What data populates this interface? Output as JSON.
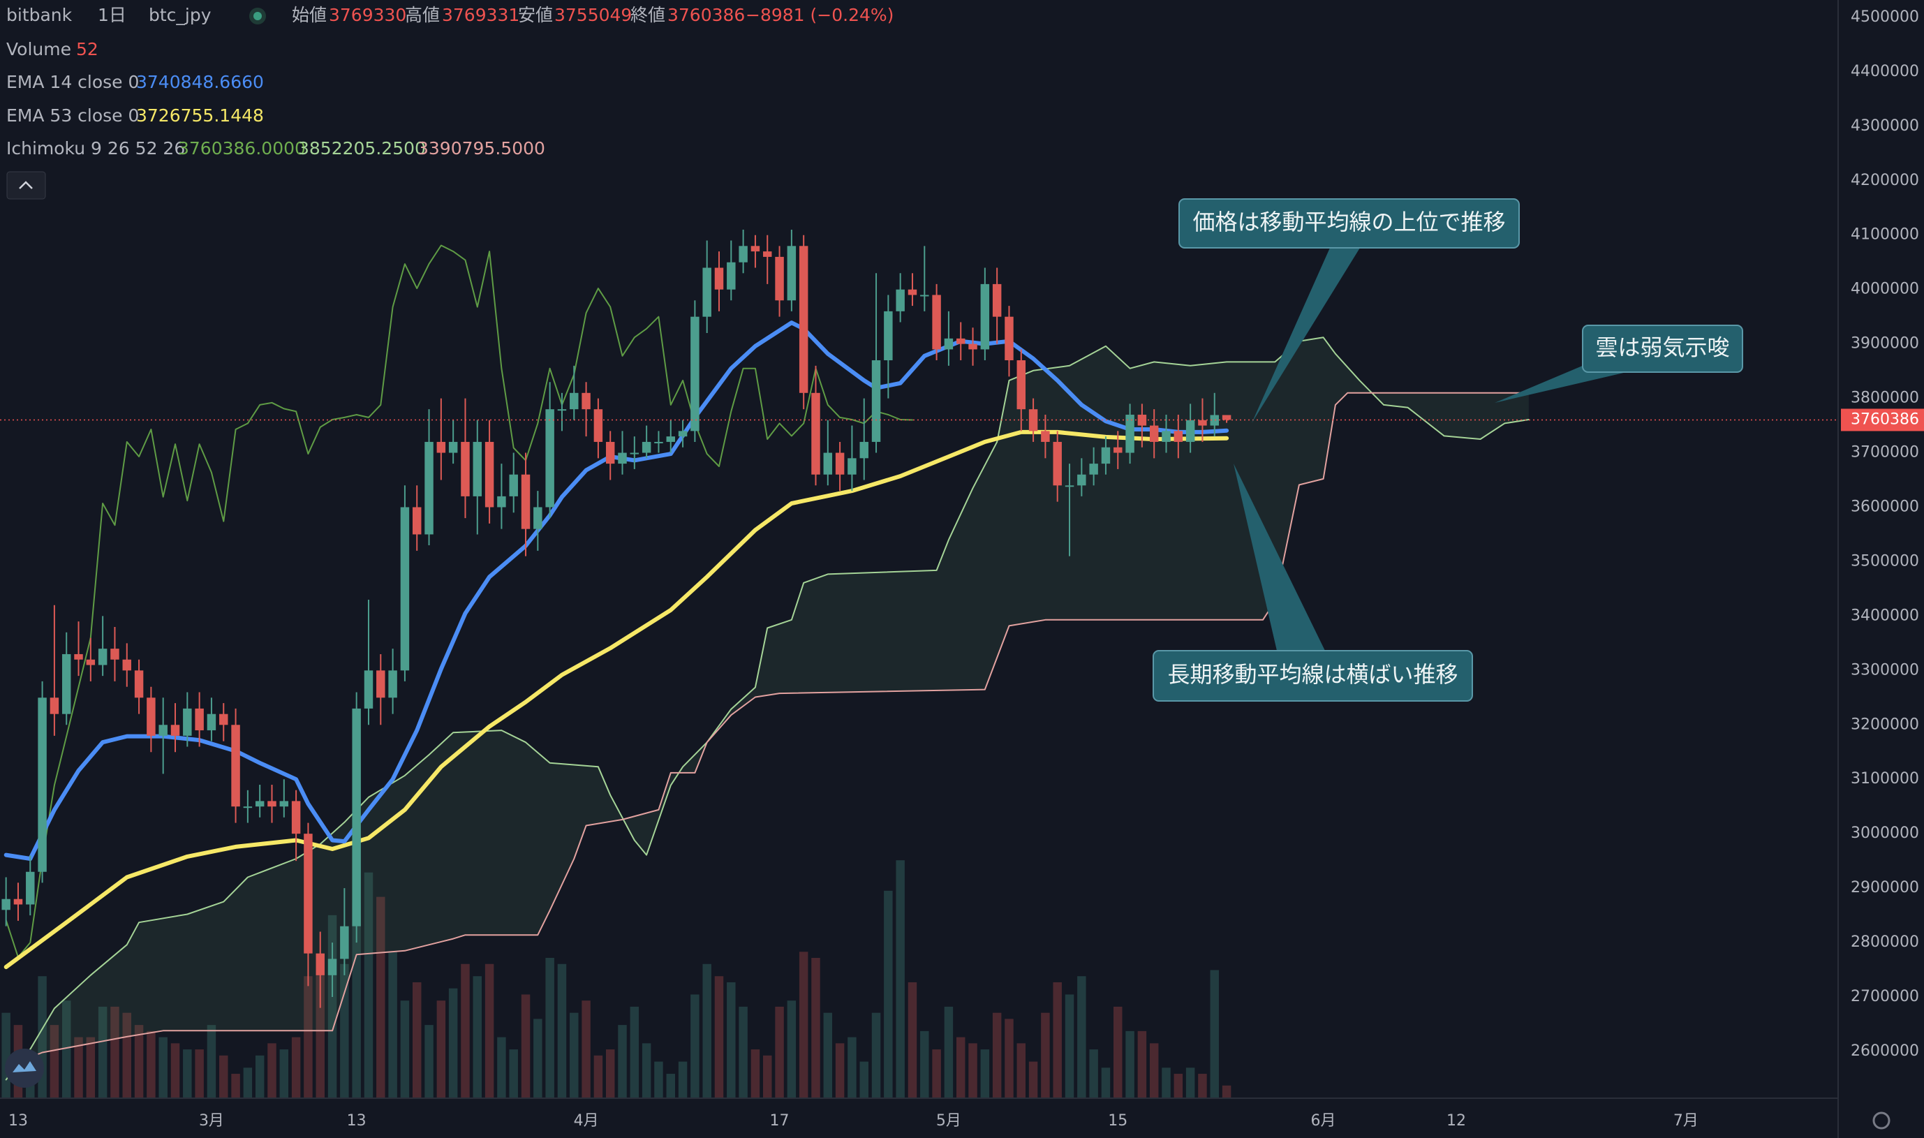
{
  "chart_data": {
    "type": "candlestick",
    "exchange": "bitbank",
    "interval": "1日",
    "symbol": "btc_jpy",
    "ohlc_labels": [
      "始値",
      "高値",
      "安値",
      "終値"
    ],
    "change": "−8981 (−0.24%)",
    "xlim": [
      -0.5,
      151.6
    ],
    "xticks": [
      {
        "value": 1,
        "label": "13"
      },
      {
        "value": 17,
        "label": "3月"
      },
      {
        "value": 29,
        "label": "13"
      },
      {
        "value": 48,
        "label": "4月"
      },
      {
        "value": 64,
        "label": "17"
      },
      {
        "value": 78,
        "label": "5月"
      },
      {
        "value": 92,
        "label": "15"
      },
      {
        "value": 109,
        "label": "6月"
      },
      {
        "value": 120,
        "label": "12"
      },
      {
        "value": 139,
        "label": "7月"
      }
    ],
    "ylim": [
      2514000,
      4532000
    ],
    "yticks": [
      2600000,
      2700000,
      2800000,
      2900000,
      3000000,
      3100000,
      3200000,
      3300000,
      3400000,
      3500000,
      3600000,
      3700000,
      3800000,
      3900000,
      4000000,
      4100000,
      4200000,
      4300000,
      4400000,
      4500000
    ],
    "grid": false,
    "candles": {
      "up_color": "#4c9e8e",
      "down_color": "#dd5a55",
      "x": [
        0,
        1,
        2,
        3,
        4,
        5,
        6,
        7,
        8,
        9,
        10,
        11,
        12,
        13,
        14,
        15,
        16,
        17,
        18,
        19,
        20,
        21,
        22,
        23,
        24,
        25,
        26,
        27,
        28,
        29,
        30,
        31,
        32,
        33,
        34,
        35,
        36,
        37,
        38,
        39,
        40,
        41,
        42,
        43,
        44,
        45,
        46,
        47,
        48,
        49,
        50,
        51,
        52,
        53,
        54,
        55,
        56,
        57,
        58,
        59,
        60,
        61,
        62,
        63,
        64,
        65,
        66,
        67,
        68,
        69,
        70,
        71,
        72,
        73,
        74,
        75,
        76,
        77,
        78,
        79,
        80,
        81,
        82,
        83,
        84,
        85,
        86,
        87,
        88,
        89,
        90,
        91,
        92,
        93,
        94,
        95,
        96,
        97,
        98,
        99,
        100,
        101
      ],
      "open": [
        2860000,
        2880000,
        2870000,
        2930000,
        3250000,
        3220000,
        3330000,
        3320000,
        3310000,
        3340000,
        3320000,
        3300000,
        3250000,
        3180000,
        3200000,
        3180000,
        3230000,
        3190000,
        3220000,
        3200000,
        3050000,
        3050000,
        3060000,
        3050000,
        3060000,
        3000000,
        2780000,
        2740000,
        2770000,
        2830000,
        3230000,
        3300000,
        3250000,
        3300000,
        3600000,
        3550000,
        3720000,
        3700000,
        3720000,
        3620000,
        3720000,
        3600000,
        3620000,
        3660000,
        3560000,
        3600000,
        3780000,
        3780000,
        3810000,
        3780000,
        3720000,
        3680000,
        3700000,
        3700000,
        3720000,
        3720000,
        3730000,
        3740000,
        3950000,
        4040000,
        4000000,
        4050000,
        4080000,
        4070000,
        4060000,
        3980000,
        4080000,
        3810000,
        3660000,
        3700000,
        3660000,
        3690000,
        3720000,
        3870000,
        3960000,
        4000000,
        3990000,
        3990000,
        3890000,
        3910000,
        3900000,
        3890000,
        4010000,
        3950000,
        3870000,
        3780000,
        3740000,
        3720000,
        3640000,
        3640000,
        3660000,
        3680000,
        3710000,
        3700000,
        3770000,
        3750000,
        3720000,
        3740000,
        3720000,
        3760000,
        3750000,
        3769330
      ],
      "high": [
        2920000,
        2910000,
        2960000,
        3280000,
        3420000,
        3370000,
        3390000,
        3360000,
        3400000,
        3380000,
        3350000,
        3320000,
        3270000,
        3250000,
        3240000,
        3260000,
        3260000,
        3250000,
        3240000,
        3230000,
        3080000,
        3090000,
        3090000,
        3100000,
        3080000,
        3020000,
        2820000,
        2800000,
        2900000,
        3260000,
        3430000,
        3330000,
        3340000,
        3640000,
        3640000,
        3780000,
        3800000,
        3760000,
        3800000,
        3760000,
        3760000,
        3680000,
        3700000,
        3700000,
        3630000,
        3830000,
        3810000,
        3860000,
        3830000,
        3800000,
        3740000,
        3740000,
        3730000,
        3750000,
        3740000,
        3760000,
        3760000,
        3980000,
        4090000,
        4070000,
        4090000,
        4110000,
        4100000,
        4100000,
        4080000,
        4110000,
        4100000,
        3860000,
        3760000,
        3720000,
        3750000,
        3800000,
        4030000,
        3990000,
        4030000,
        4030000,
        4080000,
        4010000,
        3960000,
        3940000,
        3930000,
        4040000,
        4040000,
        3970000,
        3890000,
        3800000,
        3770000,
        3740000,
        3680000,
        3690000,
        3710000,
        3730000,
        3740000,
        3790000,
        3790000,
        3780000,
        3770000,
        3770000,
        3790000,
        3800000,
        3810000,
        3769331
      ],
      "low": [
        2830000,
        2840000,
        2850000,
        2910000,
        3180000,
        3200000,
        3290000,
        3280000,
        3290000,
        3280000,
        3270000,
        3220000,
        3150000,
        3110000,
        3150000,
        3160000,
        3160000,
        3170000,
        3170000,
        3020000,
        3020000,
        3030000,
        3020000,
        3030000,
        2950000,
        2720000,
        2680000,
        2700000,
        2740000,
        2800000,
        3200000,
        3200000,
        3220000,
        3280000,
        3520000,
        3530000,
        3650000,
        3680000,
        3580000,
        3550000,
        3570000,
        3560000,
        3590000,
        3510000,
        3520000,
        3580000,
        3740000,
        3760000,
        3730000,
        3690000,
        3650000,
        3660000,
        3670000,
        3690000,
        3700000,
        3700000,
        3710000,
        3720000,
        3920000,
        3960000,
        3980000,
        4030000,
        4040000,
        4010000,
        3950000,
        3960000,
        3780000,
        3640000,
        3640000,
        3630000,
        3630000,
        3650000,
        3700000,
        3800000,
        3940000,
        3970000,
        3960000,
        3870000,
        3860000,
        3870000,
        3860000,
        3870000,
        3900000,
        3840000,
        3740000,
        3720000,
        3690000,
        3610000,
        3510000,
        3620000,
        3640000,
        3660000,
        3670000,
        3680000,
        3710000,
        3690000,
        3700000,
        3690000,
        3700000,
        3720000,
        3730000,
        3755049
      ],
      "close": [
        2880000,
        2870000,
        2930000,
        3250000,
        3220000,
        3330000,
        3320000,
        3310000,
        3340000,
        3320000,
        3300000,
        3250000,
        3180000,
        3200000,
        3180000,
        3230000,
        3190000,
        3220000,
        3200000,
        3050000,
        3050000,
        3060000,
        3050000,
        3060000,
        3000000,
        2780000,
        2740000,
        2770000,
        2830000,
        3230000,
        3300000,
        3250000,
        3300000,
        3600000,
        3550000,
        3720000,
        3700000,
        3720000,
        3620000,
        3720000,
        3600000,
        3620000,
        3660000,
        3560000,
        3600000,
        3780000,
        3780000,
        3810000,
        3780000,
        3720000,
        3680000,
        3700000,
        3700000,
        3720000,
        3720000,
        3730000,
        3740000,
        3950000,
        4040000,
        4000000,
        4050000,
        4080000,
        4070000,
        4060000,
        3980000,
        4080000,
        3810000,
        3660000,
        3700000,
        3660000,
        3690000,
        3720000,
        3870000,
        3960000,
        4000000,
        3990000,
        3990000,
        3890000,
        3910000,
        3900000,
        3890000,
        4010000,
        3950000,
        3870000,
        3780000,
        3740000,
        3720000,
        3640000,
        3640000,
        3660000,
        3680000,
        3710000,
        3700000,
        3770000,
        3750000,
        3720000,
        3740000,
        3720000,
        3760000,
        3750000,
        3769330,
        3760386
      ]
    },
    "volume": {
      "name": "Volume",
      "ylim": [
        0,
        4500
      ],
      "values": [
        350,
        300,
        150,
        500,
        300,
        400,
        250,
        250,
        375,
        375,
        350,
        300,
        275,
        250,
        225,
        200,
        200,
        300,
        175,
        100,
        125,
        175,
        225,
        200,
        250,
        500,
        525,
        750,
        550,
        800,
        925,
        825,
        600,
        400,
        475,
        300,
        400,
        450,
        550,
        500,
        550,
        250,
        200,
        425,
        325,
        575,
        550,
        350,
        400,
        175,
        200,
        300,
        375,
        225,
        150,
        100,
        150,
        425,
        550,
        500,
        475,
        375,
        200,
        175,
        375,
        400,
        600,
        575,
        350,
        225,
        250,
        150,
        350,
        850,
        975,
        475,
        275,
        200,
        375,
        250,
        225,
        200,
        350,
        325,
        225,
        150,
        350,
        475,
        425,
        500,
        200,
        125,
        375,
        275,
        275,
        225,
        125,
        100,
        125,
        100,
        525,
        52
      ]
    },
    "series": [
      {
        "name": "EMA 14 close 0",
        "color": "#4b8df5",
        "legend_value": "3740848.6660",
        "x": [
          0,
          2,
          4,
          6,
          8,
          10,
          13,
          16,
          19,
          21,
          24,
          25,
          27,
          28,
          30,
          32,
          34,
          36,
          38,
          40,
          43,
          45,
          46,
          48,
          50,
          52,
          55,
          57,
          60,
          62,
          65,
          66,
          68,
          71,
          72,
          74,
          76,
          79,
          81,
          83,
          85,
          87,
          89,
          91,
          93,
          95,
          97,
          99,
          101
        ],
        "values": [
          2961000,
          2954000,
          3044000,
          3116000,
          3168000,
          3179000,
          3179000,
          3172000,
          3152000,
          3130000,
          3100000,
          3055000,
          2988000,
          2986000,
          3044000,
          3100000,
          3190000,
          3303000,
          3405000,
          3472000,
          3529000,
          3585000,
          3619000,
          3668000,
          3693000,
          3686000,
          3698000,
          3765000,
          3855000,
          3896000,
          3939000,
          3928000,
          3882000,
          3833000,
          3819000,
          3828000,
          3878000,
          3905000,
          3900000,
          3905000,
          3873000,
          3833000,
          3788000,
          3758000,
          3743000,
          3743000,
          3738000,
          3738000,
          3740849
        ]
      },
      {
        "name": "EMA 53 close 0",
        "color": "#f6e867",
        "legend_value": "3726755.1448",
        "x": [
          0,
          5,
          10,
          15,
          19,
          24,
          27,
          30,
          33,
          36,
          40,
          43,
          46,
          50,
          55,
          58,
          62,
          65,
          70,
          74,
          78,
          81,
          84,
          87,
          91,
          95,
          101
        ],
        "values": [
          2755000,
          2837000,
          2920000,
          2958000,
          2976000,
          2988000,
          2972000,
          2992000,
          3044000,
          3123000,
          3197000,
          3242000,
          3292000,
          3341000,
          3411000,
          3472000,
          3558000,
          3607000,
          3630000,
          3657000,
          3693000,
          3720000,
          3738000,
          3738000,
          3729000,
          3725000,
          3726755
        ]
      }
    ],
    "ichimoku": {
      "name": "Ichimoku 9 26 52 26",
      "legend_values": [
        "3760386.0000",
        "3852205.2500",
        "3390795.5000"
      ],
      "cloud_color": "rgba(90,150,110,0.13)",
      "lagging": {
        "color": "#5f9c45",
        "x": [
          0,
          1,
          2,
          3,
          4,
          5,
          7,
          8,
          9,
          10,
          11,
          12,
          13,
          14,
          15,
          16,
          17,
          18,
          19,
          20,
          21,
          22,
          23,
          24,
          25,
          26,
          27,
          28,
          29,
          30,
          31,
          32,
          33,
          34,
          35,
          36,
          37,
          38,
          39,
          40,
          41,
          42,
          43,
          44,
          45,
          46,
          47,
          48,
          49,
          50,
          51,
          52,
          53,
          54,
          55,
          56,
          57,
          58,
          59,
          60,
          61,
          62,
          63,
          64,
          65,
          66,
          67,
          68,
          69,
          70,
          71,
          72,
          73,
          74,
          75
        ],
        "values": [
          2841000,
          2773000,
          2800000,
          2954000,
          3089000,
          3179000,
          3360000,
          3607000,
          3567000,
          3720000,
          3693000,
          3743000,
          3619000,
          3716000,
          3612000,
          3716000,
          3664000,
          3574000,
          3743000,
          3754000,
          3788000,
          3792000,
          3781000,
          3776000,
          3698000,
          3747000,
          3761000,
          3765000,
          3770000,
          3765000,
          3788000,
          3968000,
          4047000,
          4002000,
          4047000,
          4081000,
          4070000,
          4054000,
          3968000,
          4070000,
          3855000,
          3709000,
          3686000,
          3754000,
          3855000,
          3788000,
          3844000,
          3957000,
          4002000,
          3968000,
          3878000,
          3912000,
          3928000,
          3950000,
          3788000,
          3833000,
          3754000,
          3698000,
          3675000,
          3776000,
          3855000,
          3855000,
          3725000,
          3754000,
          3731000,
          3754000,
          3855000,
          3788000,
          3765000,
          3761000,
          3754000,
          3776000,
          3770000,
          3761000,
          3760386
        ]
      },
      "span_a": {
        "color": "#a5d497",
        "x": [
          0,
          2,
          4,
          7,
          10,
          11,
          15,
          18,
          20,
          24,
          26,
          28,
          30,
          33,
          35,
          37,
          41,
          43,
          45,
          49,
          50,
          52,
          53,
          55,
          56,
          58,
          60,
          62,
          63,
          65,
          66,
          68,
          77,
          78,
          80,
          82,
          83,
          85,
          88,
          91,
          93,
          95,
          98,
          101,
          105,
          107,
          109,
          110,
          112,
          114,
          116,
          119,
          121,
          122,
          124,
          126
        ],
        "values": [
          2548000,
          2604000,
          2679000,
          2740000,
          2796000,
          2837000,
          2852000,
          2875000,
          2920000,
          2954000,
          2981000,
          3021000,
          3067000,
          3107000,
          3145000,
          3186000,
          3190000,
          3168000,
          3130000,
          3123000,
          3071000,
          2988000,
          2961000,
          3089000,
          3123000,
          3168000,
          3229000,
          3269000,
          3378000,
          3393000,
          3461000,
          3477000,
          3484000,
          3540000,
          3635000,
          3720000,
          3833000,
          3851000,
          3860000,
          3896000,
          3855000,
          3867000,
          3860000,
          3867000,
          3867000,
          3905000,
          3912000,
          3882000,
          3833000,
          3788000,
          3783000,
          3731000,
          3727000,
          3725000,
          3754000,
          3761000
        ]
      },
      "span_b": {
        "color": "#e3a2a0",
        "x": [
          0,
          3,
          10,
          13,
          27,
          29,
          33,
          37,
          38,
          44,
          45,
          47,
          48,
          51,
          54,
          55,
          57,
          58,
          60,
          62,
          64,
          81,
          83,
          86,
          104,
          105,
          107,
          109,
          110,
          111,
          120,
          126
        ],
        "values": [
          2571000,
          2598000,
          2627000,
          2638000,
          2638000,
          2778000,
          2785000,
          2807000,
          2814000,
          2814000,
          2859000,
          2954000,
          3015000,
          3026000,
          3044000,
          3112000,
          3112000,
          3168000,
          3218000,
          3251000,
          3258000,
          3265000,
          3382000,
          3393000,
          3393000,
          3427000,
          3641000,
          3652000,
          3788000,
          3810000,
          3810000,
          3810000
        ]
      }
    },
    "annotations": [
      "価格は移動平均線の上位で推移",
      "雲は弱気示唆",
      "長期移動平均線は横ばい推移"
    ]
  }
}
